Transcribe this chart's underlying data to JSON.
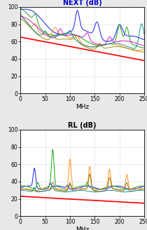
{
  "title1": "NEXT (dB)",
  "title2": "RL (dB)",
  "xlabel": "MHz",
  "xlim": [
    0,
    250
  ],
  "next_ylim": [
    0,
    100
  ],
  "rl_ylim": [
    0,
    100
  ],
  "next_yticks": [
    0,
    20,
    40,
    60,
    80,
    100
  ],
  "rl_yticks": [
    0,
    20,
    40,
    60,
    80,
    100
  ],
  "xticks": [
    0,
    50,
    100,
    150,
    200,
    250
  ],
  "background_color": "#e8e8e8",
  "plot_bg_color": "#ffffff",
  "title1_color": "#0000cc",
  "title2_color": "#000000",
  "limit_color": "#ff0000",
  "grid_color": "#bbbbbb"
}
